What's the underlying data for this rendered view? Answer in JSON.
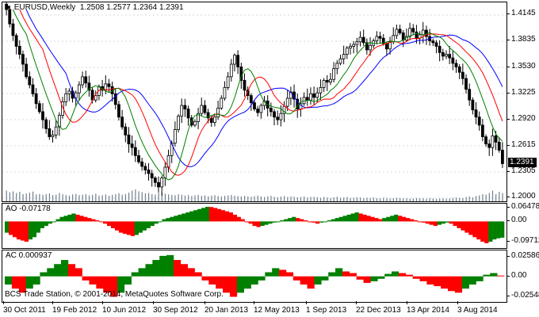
{
  "header": {
    "symbol": "EURUSD,Weekly",
    "ohlc": "1.2508 1.2577 1.2364 1.2391"
  },
  "price_axis": [
    "1.4145",
    "1.3835",
    "1.3530",
    "1.3225",
    "1.2920",
    "1.2615",
    "1.2305",
    "1.2000"
  ],
  "current_price": "1.2391",
  "ao": {
    "label": "AO -0.07178",
    "axis": [
      "0.06478",
      "0.00",
      "-0.09712"
    ]
  },
  "ac": {
    "label": "AC 0.000937",
    "axis": [
      "0.025868",
      "0.00",
      "-0.025483"
    ]
  },
  "time_axis": [
    "30 Oct 2011",
    "19 Feb 2012",
    "10 Jun 2012",
    "30 Sep 2012",
    "20 Jan 2013",
    "12 May 2013",
    "1 Sep 2013",
    "22 Dec 2013",
    "13 Apr 2014",
    "3 Aug 2014"
  ],
  "copyright": "BCS Trade Station, © 2001-2014, MetaQuotes Software Corp.",
  "colors": {
    "candle": "#000000",
    "jaw": "#0000ff",
    "teeth": "#ff0000",
    "lips": "#008000",
    "volume": "#708090",
    "bar_up": "#008000",
    "bar_down": "#ff0000"
  },
  "chart_data": {
    "type": "candlestick",
    "ylim": [
      1.198,
      1.42
    ],
    "prices": [
      1.412,
      1.396,
      1.383,
      1.371,
      1.362,
      1.351,
      1.337,
      1.328,
      1.318,
      1.307,
      1.298,
      1.289,
      1.279,
      1.27,
      1.272,
      1.281,
      1.294,
      1.309,
      1.318,
      1.321,
      1.313,
      1.319,
      1.328,
      1.337,
      1.33,
      1.322,
      1.311,
      1.316,
      1.326,
      1.322,
      1.329,
      1.326,
      1.318,
      1.306,
      1.292,
      1.281,
      1.272,
      1.262,
      1.258,
      1.249,
      1.242,
      1.237,
      1.233,
      1.229,
      1.224,
      1.219,
      1.214,
      1.224,
      1.236,
      1.249,
      1.263,
      1.278,
      1.293,
      1.305,
      1.301,
      1.291,
      1.283,
      1.287,
      1.296,
      1.305,
      1.297,
      1.291,
      1.286,
      1.292,
      1.302,
      1.313,
      1.325,
      1.337,
      1.351,
      1.361,
      1.348,
      1.333,
      1.322,
      1.316,
      1.308,
      1.301,
      1.297,
      1.305,
      1.31,
      1.302,
      1.298,
      1.292,
      1.289,
      1.296,
      1.304,
      1.313,
      1.32,
      1.312,
      1.301,
      1.307,
      1.314,
      1.311,
      1.318,
      1.314,
      1.319,
      1.325,
      1.333,
      1.331,
      1.334,
      1.346,
      1.352,
      1.357,
      1.362,
      1.369,
      1.371,
      1.373,
      1.376,
      1.381,
      1.375,
      1.367,
      1.372,
      1.377,
      1.382,
      1.38,
      1.374,
      1.368,
      1.376,
      1.383,
      1.39,
      1.386,
      1.378,
      1.382,
      1.391,
      1.387,
      1.38,
      1.384,
      1.389,
      1.382,
      1.377,
      1.375,
      1.371,
      1.364,
      1.36,
      1.362,
      1.358,
      1.352,
      1.348,
      1.342,
      1.335,
      1.323,
      1.311,
      1.3,
      1.292,
      1.283,
      1.27,
      1.262,
      1.258,
      1.271,
      1.264,
      1.255,
      1.24
    ],
    "volume": [
      0.45,
      0.38,
      0.42,
      0.35,
      0.4,
      0.3,
      0.33,
      0.36,
      0.41,
      0.29,
      0.31,
      0.27,
      0.3,
      0.33,
      0.26,
      0.28,
      0.35,
      0.3,
      0.27,
      0.24,
      0.29,
      0.31,
      0.26,
      0.28,
      0.3,
      0.25,
      0.27,
      0.32,
      0.24,
      0.26,
      0.29,
      0.23,
      0.27,
      0.3,
      0.34,
      0.28,
      0.31,
      0.36,
      0.45,
      0.5,
      0.42,
      0.38,
      0.33,
      0.35,
      0.3,
      0.28,
      0.4,
      0.37,
      0.32,
      0.29,
      0.27,
      0.26,
      0.3,
      0.28,
      0.24,
      0.26,
      0.22,
      0.25,
      0.27,
      0.23,
      0.25,
      0.21,
      0.24,
      0.26,
      0.22,
      0.2,
      0.23,
      0.25,
      0.27,
      0.24,
      0.22,
      0.2,
      0.23,
      0.21,
      0.19,
      0.22,
      0.24,
      0.2,
      0.18,
      0.21,
      0.23,
      0.19,
      0.17,
      0.2,
      0.22,
      0.18,
      0.2,
      0.19,
      0.17,
      0.18,
      0.2,
      0.16,
      0.18,
      0.19,
      0.17,
      0.15,
      0.18,
      0.16,
      0.14,
      0.17,
      0.19,
      0.15,
      0.16,
      0.18,
      0.14,
      0.15,
      0.17,
      0.16,
      0.13,
      0.15,
      0.14,
      0.16,
      0.13,
      0.12,
      0.15,
      0.14,
      0.12,
      0.13,
      0.15,
      0.14,
      0.12,
      0.13,
      0.11,
      0.12,
      0.14,
      0.13,
      0.12,
      0.11,
      0.13,
      0.12,
      0.1,
      0.12,
      0.13,
      0.11,
      0.12,
      0.14,
      0.16,
      0.15,
      0.13,
      0.18,
      0.2,
      0.17,
      0.22,
      0.25,
      0.3,
      0.28,
      0.35,
      0.45,
      0.3,
      0.4,
      0.35
    ],
    "ao": [
      -0.05,
      -0.06,
      -0.07,
      -0.08,
      -0.085,
      -0.09,
      -0.08,
      -0.07,
      -0.05,
      -0.03,
      -0.02,
      -0.01,
      0.0,
      0.01,
      0.02,
      0.025,
      0.03,
      0.035,
      0.03,
      0.025,
      0.02,
      0.015,
      0.01,
      0.005,
      0.0,
      -0.01,
      -0.02,
      -0.03,
      -0.04,
      -0.05,
      -0.055,
      -0.06,
      -0.065,
      -0.06,
      -0.05,
      -0.04,
      -0.03,
      -0.02,
      -0.01,
      0.0,
      0.01,
      0.015,
      0.02,
      0.025,
      0.03,
      0.035,
      0.04,
      0.045,
      0.05,
      0.055,
      0.06,
      0.065,
      0.064,
      0.06,
      0.055,
      0.05,
      0.045,
      0.04,
      0.03,
      0.02,
      0.01,
      0.0,
      -0.01,
      -0.02,
      -0.025,
      -0.02,
      -0.015,
      -0.01,
      -0.005,
      0.0,
      0.005,
      0.01,
      0.015,
      0.02,
      0.015,
      0.01,
      0.005,
      0.0,
      -0.005,
      -0.01,
      -0.005,
      0.0,
      0.005,
      0.01,
      0.015,
      0.02,
      0.025,
      0.03,
      0.035,
      0.04,
      0.035,
      0.03,
      0.025,
      0.02,
      0.015,
      0.01,
      0.015,
      0.02,
      0.025,
      0.03,
      0.025,
      0.02,
      0.015,
      0.01,
      0.005,
      0.0,
      -0.005,
      -0.01,
      -0.015,
      -0.02,
      -0.015,
      -0.01,
      -0.005,
      -0.01,
      -0.02,
      -0.03,
      -0.04,
      -0.05,
      -0.06,
      -0.07,
      -0.08,
      -0.09,
      -0.097,
      -0.09,
      -0.08,
      -0.075,
      -0.072
    ],
    "ac": [
      -0.01,
      -0.015,
      -0.02,
      -0.015,
      -0.01,
      0.005,
      0.01,
      0.015,
      0.02,
      0.015,
      0.01,
      -0.005,
      -0.01,
      -0.015,
      -0.02,
      -0.025,
      -0.02,
      -0.01,
      0.005,
      0.01,
      0.015,
      0.02,
      0.025,
      0.026,
      0.02,
      0.015,
      0.01,
      0.005,
      -0.005,
      -0.01,
      -0.015,
      -0.02,
      -0.025,
      -0.02,
      -0.015,
      -0.01,
      -0.005,
      0.005,
      0.01,
      0.008,
      0.005,
      -0.005,
      -0.01,
      -0.015,
      -0.01,
      -0.005,
      0.005,
      0.01,
      0.006,
      0.004,
      -0.004,
      -0.008,
      -0.006,
      -0.003,
      0.003,
      0.006,
      0.004,
      0.002,
      -0.003,
      -0.006,
      -0.01,
      -0.012,
      -0.015,
      -0.018,
      -0.02,
      -0.015,
      -0.01,
      -0.006,
      0.002,
      0.004,
      0.001
    ]
  }
}
